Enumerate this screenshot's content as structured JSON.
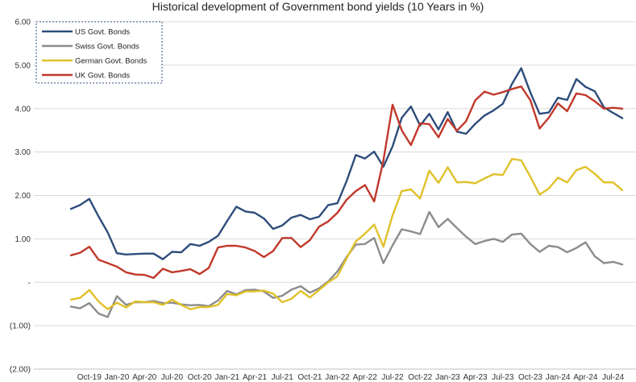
{
  "chart_data": {
    "type": "line",
    "title": "Historical development of Government bond yields (10 Years in %)",
    "xlabel": "",
    "ylabel": "",
    "ylim": [
      -2.0,
      6.0
    ],
    "y_ticks": [
      {
        "value": 6,
        "label": "6.00"
      },
      {
        "value": 5,
        "label": "5.00"
      },
      {
        "value": 4,
        "label": "4.00"
      },
      {
        "value": 3,
        "label": "3.00"
      },
      {
        "value": 2,
        "label": "2.00"
      },
      {
        "value": 1,
        "label": "1.00"
      },
      {
        "value": 0,
        "label": "-"
      },
      {
        "value": -1,
        "label": "(1.00)"
      },
      {
        "value": -2,
        "label": "(2.00)"
      }
    ],
    "x_start": "Aug-19",
    "x_ticks": [
      {
        "index": 2,
        "label": "Oct-19"
      },
      {
        "index": 5,
        "label": "Jan-20"
      },
      {
        "index": 8,
        "label": "Apr-20"
      },
      {
        "index": 11,
        "label": "Jul-20"
      },
      {
        "index": 14,
        "label": "Oct-20"
      },
      {
        "index": 17,
        "label": "Jan-21"
      },
      {
        "index": 20,
        "label": "Apr-21"
      },
      {
        "index": 23,
        "label": "Jul-21"
      },
      {
        "index": 26,
        "label": "Oct-21"
      },
      {
        "index": 29,
        "label": "Jan-22"
      },
      {
        "index": 32,
        "label": "Apr-22"
      },
      {
        "index": 35,
        "label": "Jul-22"
      },
      {
        "index": 38,
        "label": "Oct-22"
      },
      {
        "index": 41,
        "label": "Jan-23"
      },
      {
        "index": 44,
        "label": "Apr-23"
      },
      {
        "index": 47,
        "label": "Jul-23"
      },
      {
        "index": 50,
        "label": "Oct-23"
      },
      {
        "index": 53,
        "label": "Jan-24"
      },
      {
        "index": 56,
        "label": "Apr-24"
      },
      {
        "index": 59,
        "label": "Jul-24"
      }
    ],
    "legend_position": "top-left",
    "series": [
      {
        "name": "US Govt. Bonds",
        "color": "#2e4d7b",
        "values": [
          1.69,
          1.78,
          1.92,
          1.52,
          1.15,
          0.67,
          0.64,
          0.65,
          0.66,
          0.66,
          0.53,
          0.7,
          0.69,
          0.88,
          0.84,
          0.93,
          1.07,
          1.41,
          1.74,
          1.63,
          1.6,
          1.47,
          1.23,
          1.31,
          1.49,
          1.55,
          1.45,
          1.51,
          1.78,
          1.82,
          2.33,
          2.93,
          2.85,
          3.01,
          2.66,
          3.13,
          3.79,
          4.05,
          3.61,
          3.88,
          3.52,
          3.92,
          3.47,
          3.42,
          3.65,
          3.84,
          3.96,
          4.11,
          4.57,
          4.93,
          4.37,
          3.88,
          3.91,
          4.25,
          4.2,
          4.68,
          4.5,
          4.4,
          4.03,
          3.9,
          3.78
        ]
      },
      {
        "name": "Swiss Govt. Bonds",
        "color": "#8c8c8c",
        "values": [
          -0.56,
          -0.6,
          -0.48,
          -0.72,
          -0.8,
          -0.32,
          -0.52,
          -0.46,
          -0.46,
          -0.43,
          -0.48,
          -0.47,
          -0.51,
          -0.53,
          -0.52,
          -0.55,
          -0.42,
          -0.2,
          -0.28,
          -0.18,
          -0.17,
          -0.21,
          -0.36,
          -0.31,
          -0.17,
          -0.09,
          -0.24,
          -0.14,
          0.02,
          0.25,
          0.58,
          0.87,
          0.88,
          1.02,
          0.44,
          0.85,
          1.22,
          1.17,
          1.11,
          1.62,
          1.27,
          1.46,
          1.25,
          1.05,
          0.88,
          0.95,
          1.0,
          0.93,
          1.1,
          1.12,
          0.88,
          0.7,
          0.84,
          0.81,
          0.69,
          0.79,
          0.92,
          0.6,
          0.44,
          0.47,
          0.41
        ]
      },
      {
        "name": "German Govt. Bonds",
        "color": "#e0c12a",
        "values": [
          -0.4,
          -0.36,
          -0.18,
          -0.44,
          -0.62,
          -0.47,
          -0.58,
          -0.44,
          -0.46,
          -0.46,
          -0.52,
          -0.4,
          -0.52,
          -0.62,
          -0.57,
          -0.57,
          -0.52,
          -0.27,
          -0.3,
          -0.21,
          -0.21,
          -0.19,
          -0.26,
          -0.46,
          -0.38,
          -0.2,
          -0.35,
          -0.18,
          0.0,
          0.14,
          0.55,
          0.94,
          1.12,
          1.33,
          0.82,
          1.54,
          2.1,
          2.14,
          1.93,
          2.57,
          2.29,
          2.65,
          2.3,
          2.31,
          2.28,
          2.39,
          2.49,
          2.47,
          2.84,
          2.81,
          2.43,
          2.02,
          2.16,
          2.41,
          2.3,
          2.58,
          2.66,
          2.5,
          2.3,
          2.3,
          2.12
        ]
      },
      {
        "name": "UK Govt. Bonds",
        "color": "#c0392b",
        "values": [
          0.62,
          0.68,
          0.82,
          0.52,
          0.44,
          0.36,
          0.23,
          0.18,
          0.17,
          0.1,
          0.31,
          0.23,
          0.26,
          0.3,
          0.19,
          0.33,
          0.8,
          0.84,
          0.84,
          0.8,
          0.72,
          0.58,
          0.72,
          1.02,
          1.02,
          0.81,
          0.97,
          1.28,
          1.4,
          1.6,
          1.9,
          2.1,
          2.24,
          1.86,
          2.8,
          4.09,
          3.5,
          3.16,
          3.66,
          3.64,
          3.34,
          3.76,
          3.49,
          3.71,
          4.19,
          4.39,
          4.32,
          4.38,
          4.45,
          4.51,
          4.19,
          3.54,
          3.79,
          4.12,
          3.94,
          4.35,
          4.31,
          4.17,
          4.0,
          4.02,
          4.0
        ]
      }
    ]
  }
}
